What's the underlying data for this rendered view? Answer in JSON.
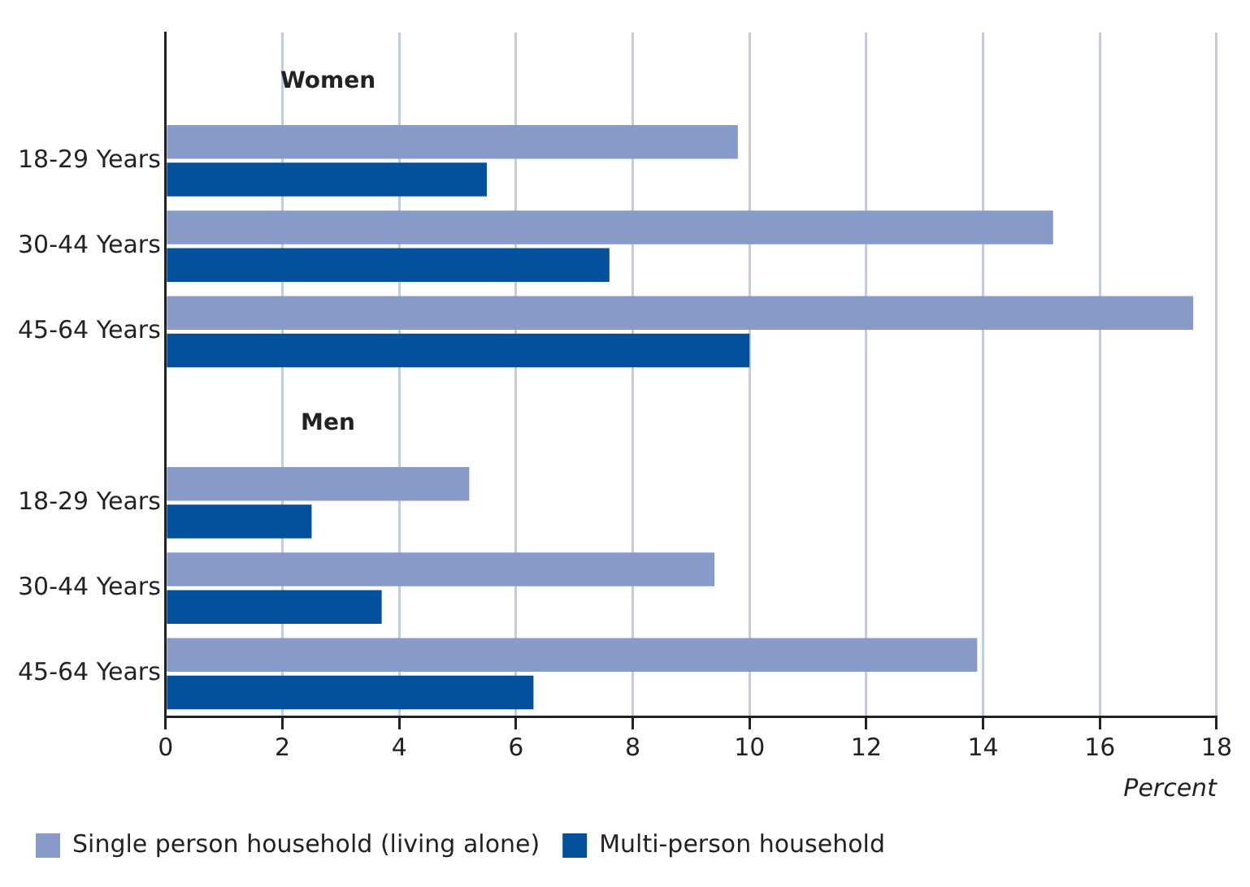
{
  "chart_data": {
    "type": "bar",
    "orientation": "horizontal",
    "xlabel": "Percent",
    "categories": [
      null,
      "18-29 Years",
      "30-44 Years",
      "45-64 Years",
      null,
      "18-29 Years",
      "30-44 Years",
      "45-64 Years"
    ],
    "annotations": [
      "Women",
      "Men"
    ],
    "series": [
      {
        "name": "Single person household (living alone)",
        "color": "#889bc8",
        "values": [
          null,
          9.8,
          15.2,
          17.6,
          null,
          5.2,
          9.4,
          13.9
        ]
      },
      {
        "name": "Multi-person household",
        "color": "#03509c",
        "values": [
          null,
          5.5,
          7.6,
          10.0,
          null,
          2.5,
          3.7,
          6.3
        ]
      }
    ],
    "xlim": [
      0,
      18
    ],
    "xticks": [
      0,
      2,
      4,
      6,
      8,
      10,
      12,
      14,
      16,
      18
    ],
    "grid": "x",
    "legend": "bottom left"
  }
}
